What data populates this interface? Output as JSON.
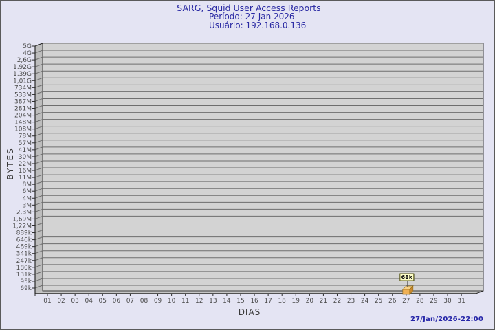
{
  "window": {
    "bg": "#e4e4f3",
    "border_color": "#5a5a5a"
  },
  "header": {
    "title": "SARG, Squid User Access Reports",
    "period": "Período: 27 Jan 2026",
    "user": "Usuário: 192.168.0.136",
    "text_color": "#2929a3"
  },
  "footer": {
    "timestamp": "27/Jan/2026-22:00"
  },
  "chart_data": {
    "type": "bar",
    "style": "3d-single-series",
    "title": "SARG, Squid User Access Reports",
    "subtitle": [
      "Período: 27 Jan 2026",
      "Usuário: 192.168.0.136"
    ],
    "xlabel": "DIAS",
    "ylabel": "BYTES",
    "x_categories": [
      "01",
      "02",
      "03",
      "04",
      "05",
      "06",
      "07",
      "08",
      "09",
      "10",
      "11",
      "12",
      "13",
      "14",
      "15",
      "16",
      "17",
      "18",
      "19",
      "20",
      "21",
      "22",
      "23",
      "24",
      "25",
      "26",
      "27",
      "28",
      "29",
      "30",
      "31"
    ],
    "y_tick_labels": [
      "5G",
      "4G",
      "2,6G",
      "1,92G",
      "1,39G",
      "1,01G",
      "734M",
      "533M",
      "387M",
      "281M",
      "204M",
      "148M",
      "108M",
      "78M",
      "57M",
      "41M",
      "30M",
      "22M",
      "16M",
      "11M",
      "8M",
      "6M",
      "4M",
      "3M",
      "2,3M",
      "1,69M",
      "1,22M",
      "889k",
      "646k",
      "469k",
      "341k",
      "247k",
      "180k",
      "131k",
      "95k",
      "69k"
    ],
    "y_scale": "logarithmic-like",
    "grid": "horizontal-lines-on",
    "legend": "none",
    "values_bytes": [
      0,
      0,
      0,
      0,
      0,
      0,
      0,
      0,
      0,
      0,
      0,
      0,
      0,
      0,
      0,
      0,
      0,
      0,
      0,
      0,
      0,
      0,
      0,
      0,
      0,
      0,
      68000,
      0,
      0,
      0,
      0
    ],
    "bars": [
      {
        "day": "27",
        "value_label": "68k",
        "approx_value_bytes": 68000
      }
    ],
    "colors": {
      "plot_bg": "#d3d3d3",
      "wall": "#bdbdbd",
      "floor": "#c6c6c6",
      "gridline": "#6e6e6e",
      "axis": "#2a2a2a",
      "tick_text": "#4a4a4a",
      "axis_label_text": "#3a3a3a",
      "bar_front": "#efb054",
      "bar_top": "#f8d38a",
      "bar_side": "#c9882f",
      "bar_edge": "#9a7018",
      "value_box_bg": "#ffffc8",
      "value_box_border": "#55550f",
      "value_box_shadow": "#8a8a8a",
      "value_text": "#111111"
    }
  }
}
